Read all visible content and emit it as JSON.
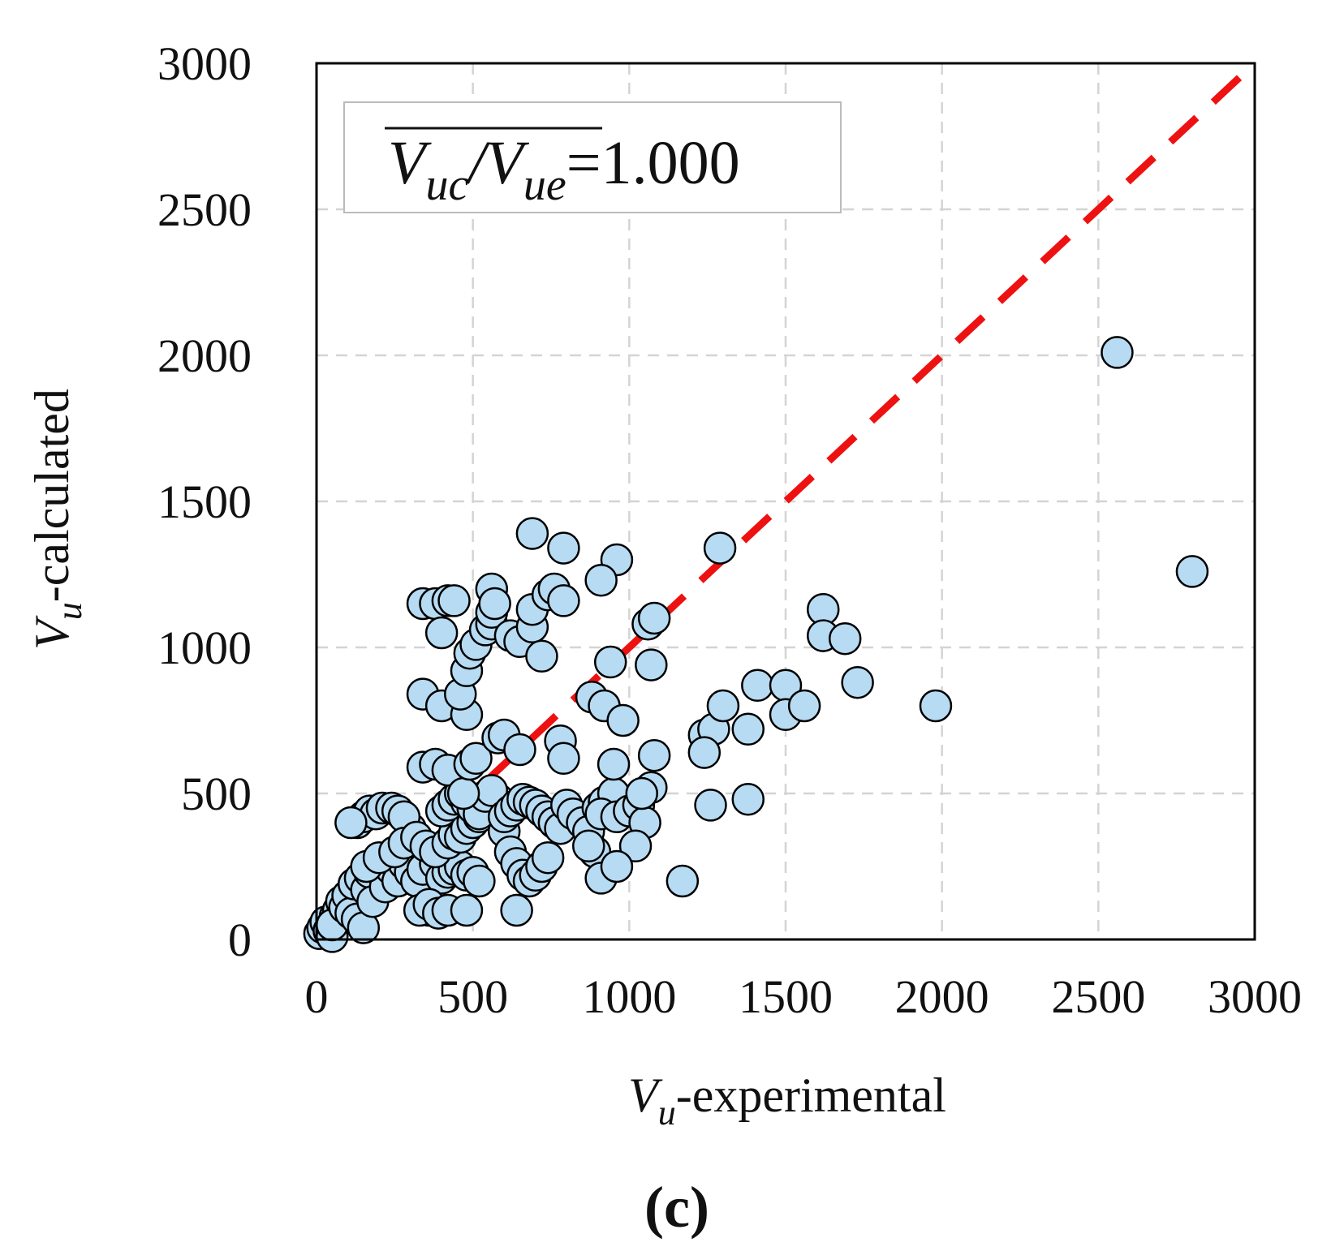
{
  "chart_data": {
    "type": "scatter",
    "title": "",
    "panel_label": "(c)",
    "xlabel": {
      "symbol": "V",
      "subscript": "u",
      "suffix": "-experimental"
    },
    "ylabel": {
      "symbol": "V",
      "subscript": "u",
      "suffix": "-calculated"
    },
    "xlim": [
      0,
      3000
    ],
    "ylim": [
      0,
      3000
    ],
    "x_ticks": [
      "0",
      "500",
      "1000",
      "1500",
      "2000",
      "2500",
      "3000"
    ],
    "y_ticks": [
      "0",
      "500",
      "1000",
      "1500",
      "2000",
      "2500",
      "3000"
    ],
    "grid": true,
    "legend": {
      "placement": "top-left",
      "ratio_parts": [
        "V",
        "uc",
        "/",
        "V",
        "ue"
      ],
      "equals_value": "=1.000"
    },
    "reference_line": {
      "name": "y = x",
      "from": [
        0,
        0
      ],
      "to": [
        3000,
        3000
      ],
      "color": "#ee1111"
    },
    "marker_fill": "#b7dbf2",
    "marker_edge": "#000000",
    "series": [
      {
        "name": "specimens",
        "points": [
          [
            10,
            20
          ],
          [
            20,
            40
          ],
          [
            30,
            60
          ],
          [
            40,
            30
          ],
          [
            50,
            10
          ],
          [
            60,
            80
          ],
          [
            70,
            100
          ],
          [
            50,
            50
          ],
          [
            80,
            130
          ],
          [
            90,
            110
          ],
          [
            100,
            150
          ],
          [
            110,
            90
          ],
          [
            120,
            190
          ],
          [
            130,
            70
          ],
          [
            140,
            210
          ],
          [
            150,
            40
          ],
          [
            160,
            170
          ],
          [
            170,
            230
          ],
          [
            180,
            130
          ],
          [
            200,
            260
          ],
          [
            220,
            180
          ],
          [
            240,
            240
          ],
          [
            260,
            200
          ],
          [
            280,
            260
          ],
          [
            300,
            230
          ],
          [
            320,
            200
          ],
          [
            340,
            240
          ],
          [
            360,
            100
          ],
          [
            380,
            260
          ],
          [
            400,
            210
          ],
          [
            420,
            230
          ],
          [
            440,
            240
          ],
          [
            460,
            250
          ],
          [
            480,
            220
          ],
          [
            500,
            230
          ],
          [
            520,
            200
          ],
          [
            330,
            100
          ],
          [
            360,
            120
          ],
          [
            390,
            90
          ],
          [
            420,
            100
          ],
          [
            480,
            100
          ],
          [
            640,
            100
          ],
          [
            130,
            400
          ],
          [
            150,
            420
          ],
          [
            170,
            440
          ],
          [
            190,
            430
          ],
          [
            210,
            450
          ],
          [
            240,
            450
          ],
          [
            260,
            440
          ],
          [
            300,
            380
          ],
          [
            280,
            420
          ],
          [
            110,
            400
          ],
          [
            160,
            250
          ],
          [
            200,
            280
          ],
          [
            250,
            300
          ],
          [
            280,
            330
          ],
          [
            320,
            350
          ],
          [
            350,
            320
          ],
          [
            380,
            300
          ],
          [
            420,
            330
          ],
          [
            440,
            360
          ],
          [
            460,
            350
          ],
          [
            480,
            380
          ],
          [
            500,
            400
          ],
          [
            520,
            420
          ],
          [
            540,
            440
          ],
          [
            560,
            460
          ],
          [
            580,
            480
          ],
          [
            400,
            440
          ],
          [
            420,
            460
          ],
          [
            440,
            480
          ],
          [
            460,
            500
          ],
          [
            480,
            470
          ],
          [
            500,
            450
          ],
          [
            520,
            430
          ],
          [
            540,
            490
          ],
          [
            560,
            510
          ],
          [
            600,
            370
          ],
          [
            620,
            300
          ],
          [
            640,
            260
          ],
          [
            660,
            220
          ],
          [
            680,
            200
          ],
          [
            700,
            220
          ],
          [
            720,
            250
          ],
          [
            740,
            280
          ],
          [
            600,
            420
          ],
          [
            620,
            440
          ],
          [
            640,
            460
          ],
          [
            660,
            480
          ],
          [
            680,
            470
          ],
          [
            700,
            460
          ],
          [
            720,
            440
          ],
          [
            740,
            420
          ],
          [
            760,
            400
          ],
          [
            780,
            380
          ],
          [
            800,
            460
          ],
          [
            820,
            430
          ],
          [
            850,
            400
          ],
          [
            870,
            370
          ],
          [
            890,
            300
          ],
          [
            900,
            450
          ],
          [
            920,
            470
          ],
          [
            950,
            500
          ],
          [
            910,
            430
          ],
          [
            870,
            320
          ],
          [
            960,
            420
          ],
          [
            1000,
            440
          ],
          [
            1030,
            460
          ],
          [
            1050,
            400
          ],
          [
            1020,
            320
          ],
          [
            910,
            210
          ],
          [
            960,
            250
          ],
          [
            1170,
            200
          ],
          [
            340,
            590
          ],
          [
            380,
            600
          ],
          [
            420,
            580
          ],
          [
            470,
            500
          ],
          [
            490,
            600
          ],
          [
            510,
            620
          ],
          [
            580,
            690
          ],
          [
            600,
            700
          ],
          [
            650,
            650
          ],
          [
            780,
            680
          ],
          [
            790,
            620
          ],
          [
            950,
            600
          ],
          [
            1080,
            630
          ],
          [
            1070,
            520
          ],
          [
            1040,
            500
          ],
          [
            340,
            840
          ],
          [
            400,
            800
          ],
          [
            480,
            770
          ],
          [
            460,
            840
          ],
          [
            480,
            920
          ],
          [
            490,
            980
          ],
          [
            510,
            1010
          ],
          [
            540,
            1060
          ],
          [
            560,
            1080
          ],
          [
            560,
            1120
          ],
          [
            620,
            1040
          ],
          [
            650,
            1020
          ],
          [
            690,
            1070
          ],
          [
            720,
            970
          ],
          [
            880,
            830
          ],
          [
            920,
            800
          ],
          [
            940,
            950
          ],
          [
            980,
            750
          ],
          [
            1060,
            1080
          ],
          [
            1080,
            1100
          ],
          [
            1070,
            940
          ],
          [
            340,
            1150
          ],
          [
            380,
            1150
          ],
          [
            420,
            1160
          ],
          [
            440,
            1160
          ],
          [
            400,
            1050
          ],
          [
            560,
            1200
          ],
          [
            570,
            1150
          ],
          [
            690,
            1130
          ],
          [
            740,
            1180
          ],
          [
            760,
            1200
          ],
          [
            790,
            1160
          ],
          [
            690,
            1390
          ],
          [
            790,
            1340
          ],
          [
            960,
            1300
          ],
          [
            910,
            1230
          ],
          [
            1290,
            1340
          ],
          [
            1240,
            700
          ],
          [
            1270,
            720
          ],
          [
            1300,
            800
          ],
          [
            1240,
            640
          ],
          [
            1260,
            460
          ],
          [
            1380,
            720
          ],
          [
            1380,
            480
          ],
          [
            1410,
            870
          ],
          [
            1500,
            870
          ],
          [
            1500,
            770
          ],
          [
            1560,
            800
          ],
          [
            1620,
            1130
          ],
          [
            1620,
            1040
          ],
          [
            1690,
            1030
          ],
          [
            1730,
            880
          ],
          [
            1980,
            800
          ],
          [
            2560,
            2010
          ],
          [
            2800,
            1260
          ]
        ]
      }
    ]
  }
}
